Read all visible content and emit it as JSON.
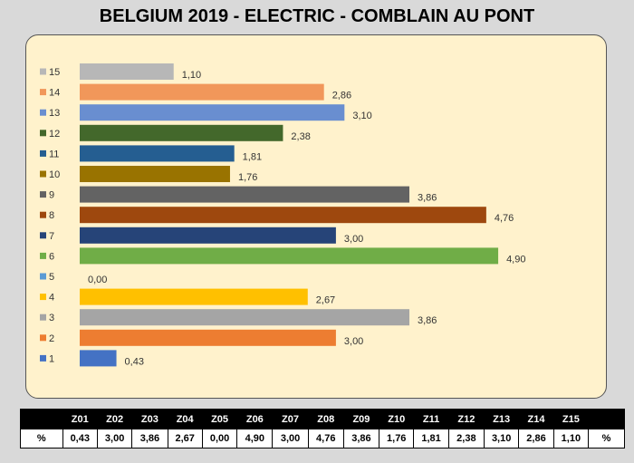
{
  "title": "BELGIUM 2019 - ELECTRIC - COMBLAIN AU PONT",
  "chart_data": {
    "type": "bar",
    "orientation": "horizontal",
    "title": "BELGIUM 2019 - ELECTRIC - COMBLAIN AU PONT",
    "categories": [
      "1",
      "2",
      "3",
      "4",
      "5",
      "6",
      "7",
      "8",
      "9",
      "10",
      "11",
      "12",
      "13",
      "14",
      "15"
    ],
    "values": [
      0.43,
      3.0,
      3.86,
      2.67,
      0.0,
      4.9,
      3.0,
      4.76,
      3.86,
      1.76,
      1.81,
      2.38,
      3.1,
      2.86,
      1.1
    ],
    "data_labels": [
      "0,43",
      "3,00",
      "3,86",
      "2,67",
      "0,00",
      "4,90",
      "3,00",
      "4,76",
      "3,86",
      "1,76",
      "1,81",
      "2,38",
      "3,10",
      "2,86",
      "1,10"
    ],
    "colors": [
      "#4472c4",
      "#ed7d31",
      "#a5a5a5",
      "#ffc000",
      "#5b9bd5",
      "#70ad47",
      "#264478",
      "#9e480e",
      "#636363",
      "#997300",
      "#255e91",
      "#43682b",
      "#698ed0",
      "#f1975a",
      "#b7b7b7"
    ],
    "xlim": [
      0,
      5.5
    ],
    "grid": false,
    "legend": "left"
  },
  "table": {
    "headers": [
      "",
      "Z01",
      "Z02",
      "Z03",
      "Z04",
      "Z05",
      "Z06",
      "Z07",
      "Z08",
      "Z09",
      "Z10",
      "Z11",
      "Z12",
      "Z13",
      "Z14",
      "Z15",
      ""
    ],
    "row": [
      "%",
      "0,43",
      "3,00",
      "3,86",
      "2,67",
      "0,00",
      "4,90",
      "3,00",
      "4,76",
      "3,86",
      "1,76",
      "1,81",
      "2,38",
      "3,10",
      "2,86",
      "1,10",
      "%"
    ]
  }
}
